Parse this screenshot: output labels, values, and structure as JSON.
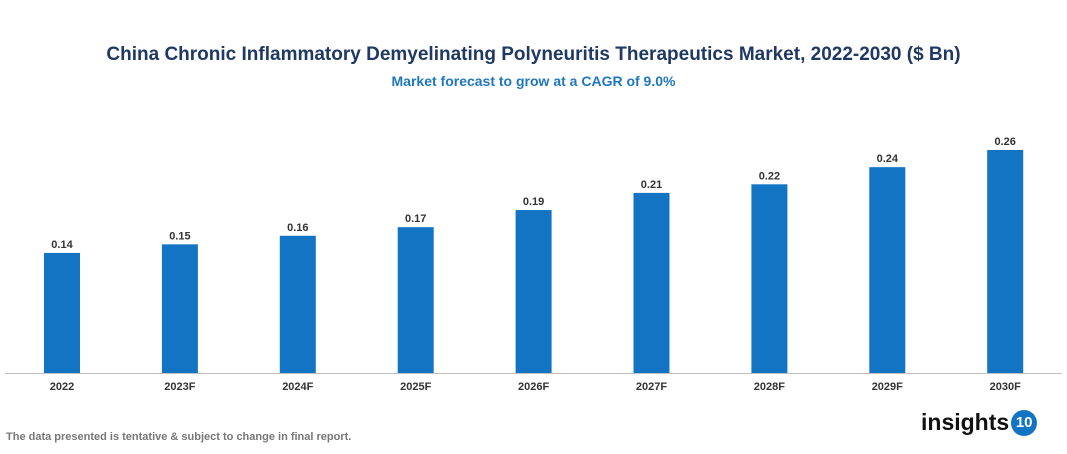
{
  "chart_data": {
    "type": "bar",
    "title": "China Chronic Inflammatory Demyelinating Polyneuritis Therapeutics Market, 2022-2030 ($ Bn)",
    "subtitle": "Market forecast to grow at a CAGR of 9.0%",
    "categories": [
      "2022",
      "2023F",
      "2024F",
      "2025F",
      "2026F",
      "2027F",
      "2028F",
      "2029F",
      "2030F"
    ],
    "values": [
      0.14,
      0.15,
      0.16,
      0.17,
      0.19,
      0.21,
      0.22,
      0.24,
      0.26
    ],
    "data_labels": [
      "0.14",
      "0.15",
      "0.16",
      "0.17",
      "0.19",
      "0.21",
      "0.22",
      "0.24",
      "0.26"
    ],
    "xlabel": "",
    "ylabel": "",
    "ylim": [
      0,
      0.26
    ],
    "grid": false,
    "bar_color": "#1474c4"
  },
  "footnote": "The data presented is tentative & subject to change in final report.",
  "logo": {
    "text": "insights",
    "badge": "10"
  }
}
